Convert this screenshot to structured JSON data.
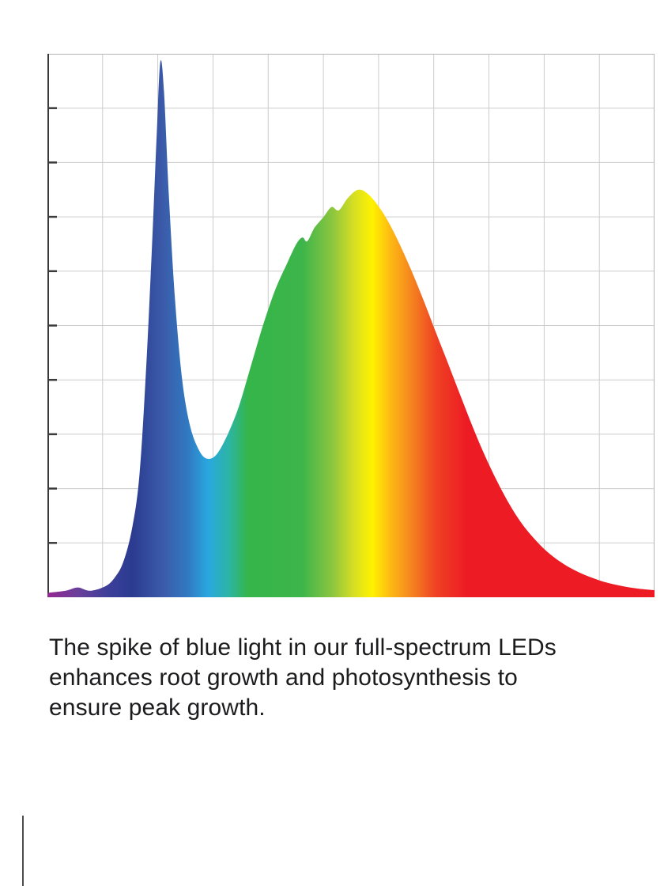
{
  "caption": {
    "text": "The spike of blue light in our full-spectrum LEDs enhances root growth and photosynthesis to ensure peak growth.",
    "lines": [
      "The spike of blue light in our full-spectrum LEDs",
      "enhances root growth and photosynthesis to",
      "ensure peak growth."
    ]
  },
  "chart_data": {
    "type": "area",
    "title": "",
    "xlabel": "",
    "ylabel": "",
    "x_range": [
      0,
      1
    ],
    "y_range": [
      0,
      1
    ],
    "grid": true,
    "grid_cols": 11,
    "grid_rows": 10,
    "legend": false,
    "points": [
      [
        0.0,
        0.008
      ],
      [
        0.03,
        0.012
      ],
      [
        0.05,
        0.018
      ],
      [
        0.07,
        0.012
      ],
      [
        0.095,
        0.02
      ],
      [
        0.11,
        0.035
      ],
      [
        0.125,
        0.065
      ],
      [
        0.14,
        0.13
      ],
      [
        0.152,
        0.23
      ],
      [
        0.163,
        0.43
      ],
      [
        0.172,
        0.64
      ],
      [
        0.18,
        0.85
      ],
      [
        0.186,
        0.985
      ],
      [
        0.192,
        0.93
      ],
      [
        0.2,
        0.74
      ],
      [
        0.21,
        0.55
      ],
      [
        0.222,
        0.4
      ],
      [
        0.235,
        0.315
      ],
      [
        0.25,
        0.27
      ],
      [
        0.263,
        0.255
      ],
      [
        0.278,
        0.262
      ],
      [
        0.295,
        0.295
      ],
      [
        0.315,
        0.35
      ],
      [
        0.335,
        0.425
      ],
      [
        0.355,
        0.5
      ],
      [
        0.375,
        0.565
      ],
      [
        0.395,
        0.615
      ],
      [
        0.41,
        0.65
      ],
      [
        0.42,
        0.662
      ],
      [
        0.428,
        0.655
      ],
      [
        0.44,
        0.68
      ],
      [
        0.455,
        0.7
      ],
      [
        0.468,
        0.718
      ],
      [
        0.48,
        0.712
      ],
      [
        0.495,
        0.735
      ],
      [
        0.512,
        0.75
      ],
      [
        0.528,
        0.742
      ],
      [
        0.545,
        0.72
      ],
      [
        0.562,
        0.69
      ],
      [
        0.58,
        0.65
      ],
      [
        0.6,
        0.6
      ],
      [
        0.62,
        0.545
      ],
      [
        0.64,
        0.487
      ],
      [
        0.66,
        0.43
      ],
      [
        0.68,
        0.372
      ],
      [
        0.7,
        0.315
      ],
      [
        0.72,
        0.262
      ],
      [
        0.74,
        0.215
      ],
      [
        0.76,
        0.173
      ],
      [
        0.78,
        0.138
      ],
      [
        0.8,
        0.11
      ],
      [
        0.822,
        0.085
      ],
      [
        0.845,
        0.065
      ],
      [
        0.868,
        0.05
      ],
      [
        0.892,
        0.038
      ],
      [
        0.918,
        0.028
      ],
      [
        0.945,
        0.021
      ],
      [
        0.972,
        0.016
      ],
      [
        1.0,
        0.013
      ]
    ],
    "gradient_stops": [
      {
        "offset": 0.0,
        "color": "#93278f"
      },
      {
        "offset": 0.05,
        "color": "#6a3f9b"
      },
      {
        "offset": 0.1,
        "color": "#3c3f99"
      },
      {
        "offset": 0.14,
        "color": "#2b3b90"
      },
      {
        "offset": 0.19,
        "color": "#3b5ba9"
      },
      {
        "offset": 0.23,
        "color": "#3178c1"
      },
      {
        "offset": 0.265,
        "color": "#29a8e0"
      },
      {
        "offset": 0.3,
        "color": "#2cb5a2"
      },
      {
        "offset": 0.33,
        "color": "#35b54a"
      },
      {
        "offset": 0.42,
        "color": "#3db54a"
      },
      {
        "offset": 0.47,
        "color": "#8dc63f"
      },
      {
        "offset": 0.505,
        "color": "#d7df23"
      },
      {
        "offset": 0.535,
        "color": "#fff200"
      },
      {
        "offset": 0.565,
        "color": "#fdb913"
      },
      {
        "offset": 0.6,
        "color": "#f5841f"
      },
      {
        "offset": 0.64,
        "color": "#ef4123"
      },
      {
        "offset": 0.69,
        "color": "#ed1c24"
      },
      {
        "offset": 1.0,
        "color": "#ed1c24"
      }
    ],
    "colors": {
      "grid": "#cccccc",
      "border": "#b5b5b5",
      "axis": "#3a3a3a",
      "background": "#ffffff"
    }
  },
  "page": {
    "background": "#ffffff",
    "edge_line_color": "#4d4d4d"
  }
}
